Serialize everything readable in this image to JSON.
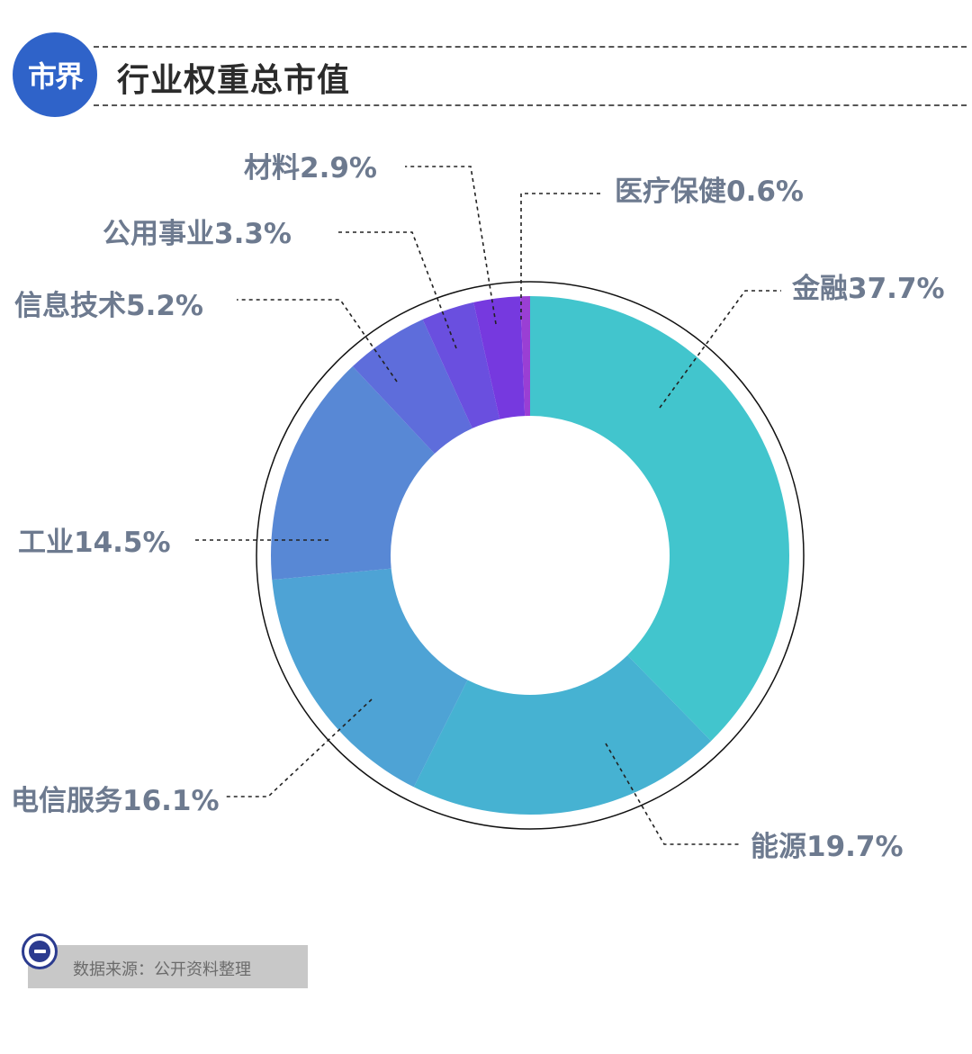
{
  "header": {
    "logo_text": "市界",
    "title": "行业权重总市值"
  },
  "footer": {
    "source": "数据来源：公开资料整理"
  },
  "chart_data": {
    "type": "pie",
    "donut": true,
    "categories": [
      "金融",
      "能源",
      "电信服务",
      "工业",
      "信息技术",
      "公用事业",
      "材料",
      "医疗保健"
    ],
    "values": [
      37.7,
      19.7,
      16.1,
      14.5,
      5.2,
      3.3,
      2.9,
      0.6
    ],
    "labels": [
      "金融37.7%",
      "能源19.7%",
      "电信服务16.1%",
      "工业14.5%",
      "信息技术5.2%",
      "公用事业3.3%",
      "材料2.9%",
      "医疗保健0.6%"
    ],
    "colors": [
      "#42c5cd",
      "#46b2d2",
      "#4ea3d5",
      "#5888d5",
      "#5e6ddb",
      "#6a4fdf",
      "#7639df",
      "#9a3fd4"
    ],
    "unit": "%"
  }
}
